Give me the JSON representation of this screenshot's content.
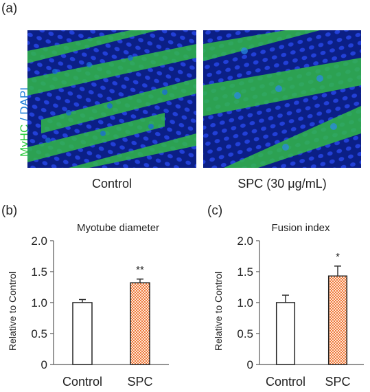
{
  "panels": {
    "a": "(a)",
    "b": "(b)",
    "c": "(c)"
  },
  "stain_label": {
    "marker1": "MyHC",
    "sep": " / ",
    "marker2": "DAPI",
    "marker1_color": "#2ecc40",
    "marker2_color": "#1e7fd8"
  },
  "images": [
    {
      "caption": "Control"
    },
    {
      "caption": "SPC (30 μg/mL)"
    }
  ],
  "colors": {
    "control_bar": "#ffffff",
    "spc_bar": "#f07a3c",
    "axis": "#555555"
  },
  "chart_data": [
    {
      "type": "bar",
      "title": "Myotube diameter",
      "ylabel": "Relative to Control",
      "categories": [
        "Control",
        "SPC"
      ],
      "values": [
        1.0,
        1.32
      ],
      "errors": [
        0.05,
        0.06
      ],
      "annotations": [
        "",
        "**"
      ],
      "ylim": [
        0,
        2.0
      ],
      "yticks": [
        "0",
        "0.5",
        "1.0",
        "1.5",
        "2.0"
      ]
    },
    {
      "type": "bar",
      "title": "Fusion index",
      "ylabel": "Relative to Control",
      "categories": [
        "Control",
        "SPC"
      ],
      "values": [
        1.0,
        1.43
      ],
      "errors": [
        0.12,
        0.16
      ],
      "annotations": [
        "",
        "*"
      ],
      "ylim": [
        0,
        2.0
      ],
      "yticks": [
        "0",
        "0.5",
        "1.0",
        "1.5",
        "2.0"
      ]
    }
  ]
}
